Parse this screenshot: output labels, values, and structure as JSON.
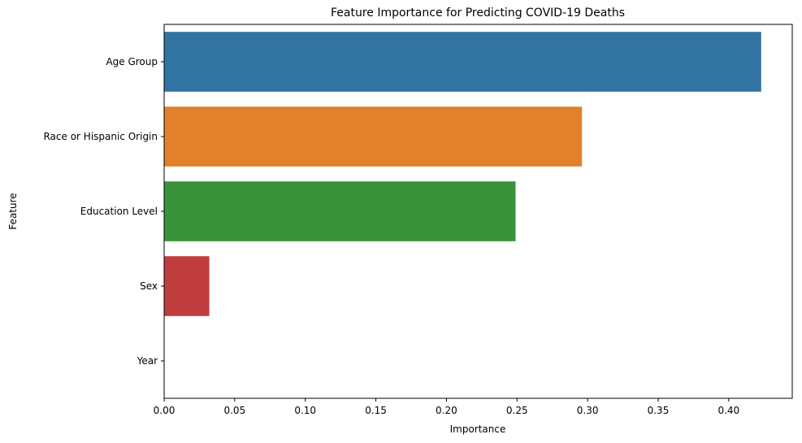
{
  "chart_data": {
    "type": "bar",
    "orientation": "horizontal",
    "title": "Feature Importance for Predicting COVID-19 Deaths",
    "xlabel": "Importance",
    "ylabel": "Feature",
    "categories": [
      "Age Group",
      "Race or Hispanic Origin",
      "Education Level",
      "Sex",
      "Year"
    ],
    "values": [
      0.423,
      0.296,
      0.249,
      0.032,
      0.0
    ],
    "colors": [
      "#3274a1",
      "#e1812c",
      "#3a923a",
      "#c03d3e",
      "#9372b2"
    ],
    "xlim": [
      0,
      0.445
    ],
    "xticks": [
      0.0,
      0.05,
      0.1,
      0.15,
      0.2,
      0.25,
      0.3,
      0.35,
      0.4
    ],
    "xtick_labels": [
      "0.00",
      "0.05",
      "0.10",
      "0.15",
      "0.20",
      "0.25",
      "0.30",
      "0.35",
      "0.40"
    ],
    "grid": false,
    "legend": "none"
  }
}
